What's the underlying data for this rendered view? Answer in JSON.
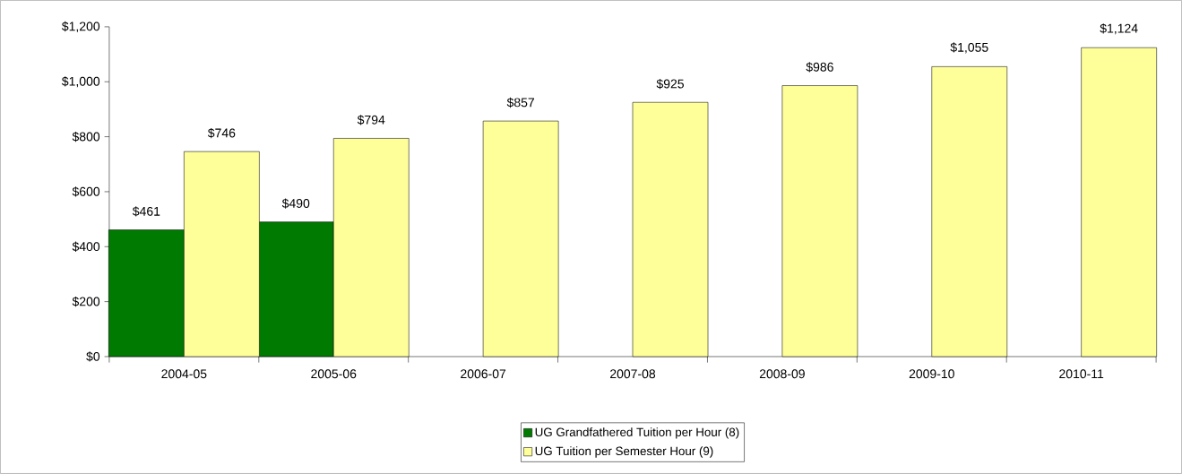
{
  "chart_data": {
    "type": "bar",
    "categories": [
      "2004-05",
      "2005-06",
      "2006-07",
      "2007-08",
      "2008-09",
      "2009-10",
      "2010-11"
    ],
    "series": [
      {
        "name": "UG Grandfathered Tuition per Hour (8)",
        "color": "#007a00",
        "values": [
          461,
          490,
          null,
          null,
          null,
          null,
          null
        ],
        "value_labels": [
          "$461",
          "$490",
          null,
          null,
          null,
          null,
          null
        ]
      },
      {
        "name": "UG Tuition per Semester Hour (9)",
        "color": "#ffff99",
        "values": [
          746,
          794,
          857,
          925,
          986,
          1055,
          1124
        ],
        "value_labels": [
          "$746",
          "$794",
          "$857",
          "$925",
          "$986",
          "$1,055",
          "$1,124"
        ]
      }
    ],
    "ylim": [
      0,
      1200
    ],
    "yticks": [
      {
        "value": 0,
        "label": "$0"
      },
      {
        "value": 200,
        "label": "$200"
      },
      {
        "value": 400,
        "label": "$400"
      },
      {
        "value": 600,
        "label": "$600"
      },
      {
        "value": 800,
        "label": "$800"
      },
      {
        "value": 1000,
        "label": "$1,000"
      },
      {
        "value": 1200,
        "label": "$1,200"
      }
    ],
    "grid": false,
    "legend": "bottom"
  }
}
